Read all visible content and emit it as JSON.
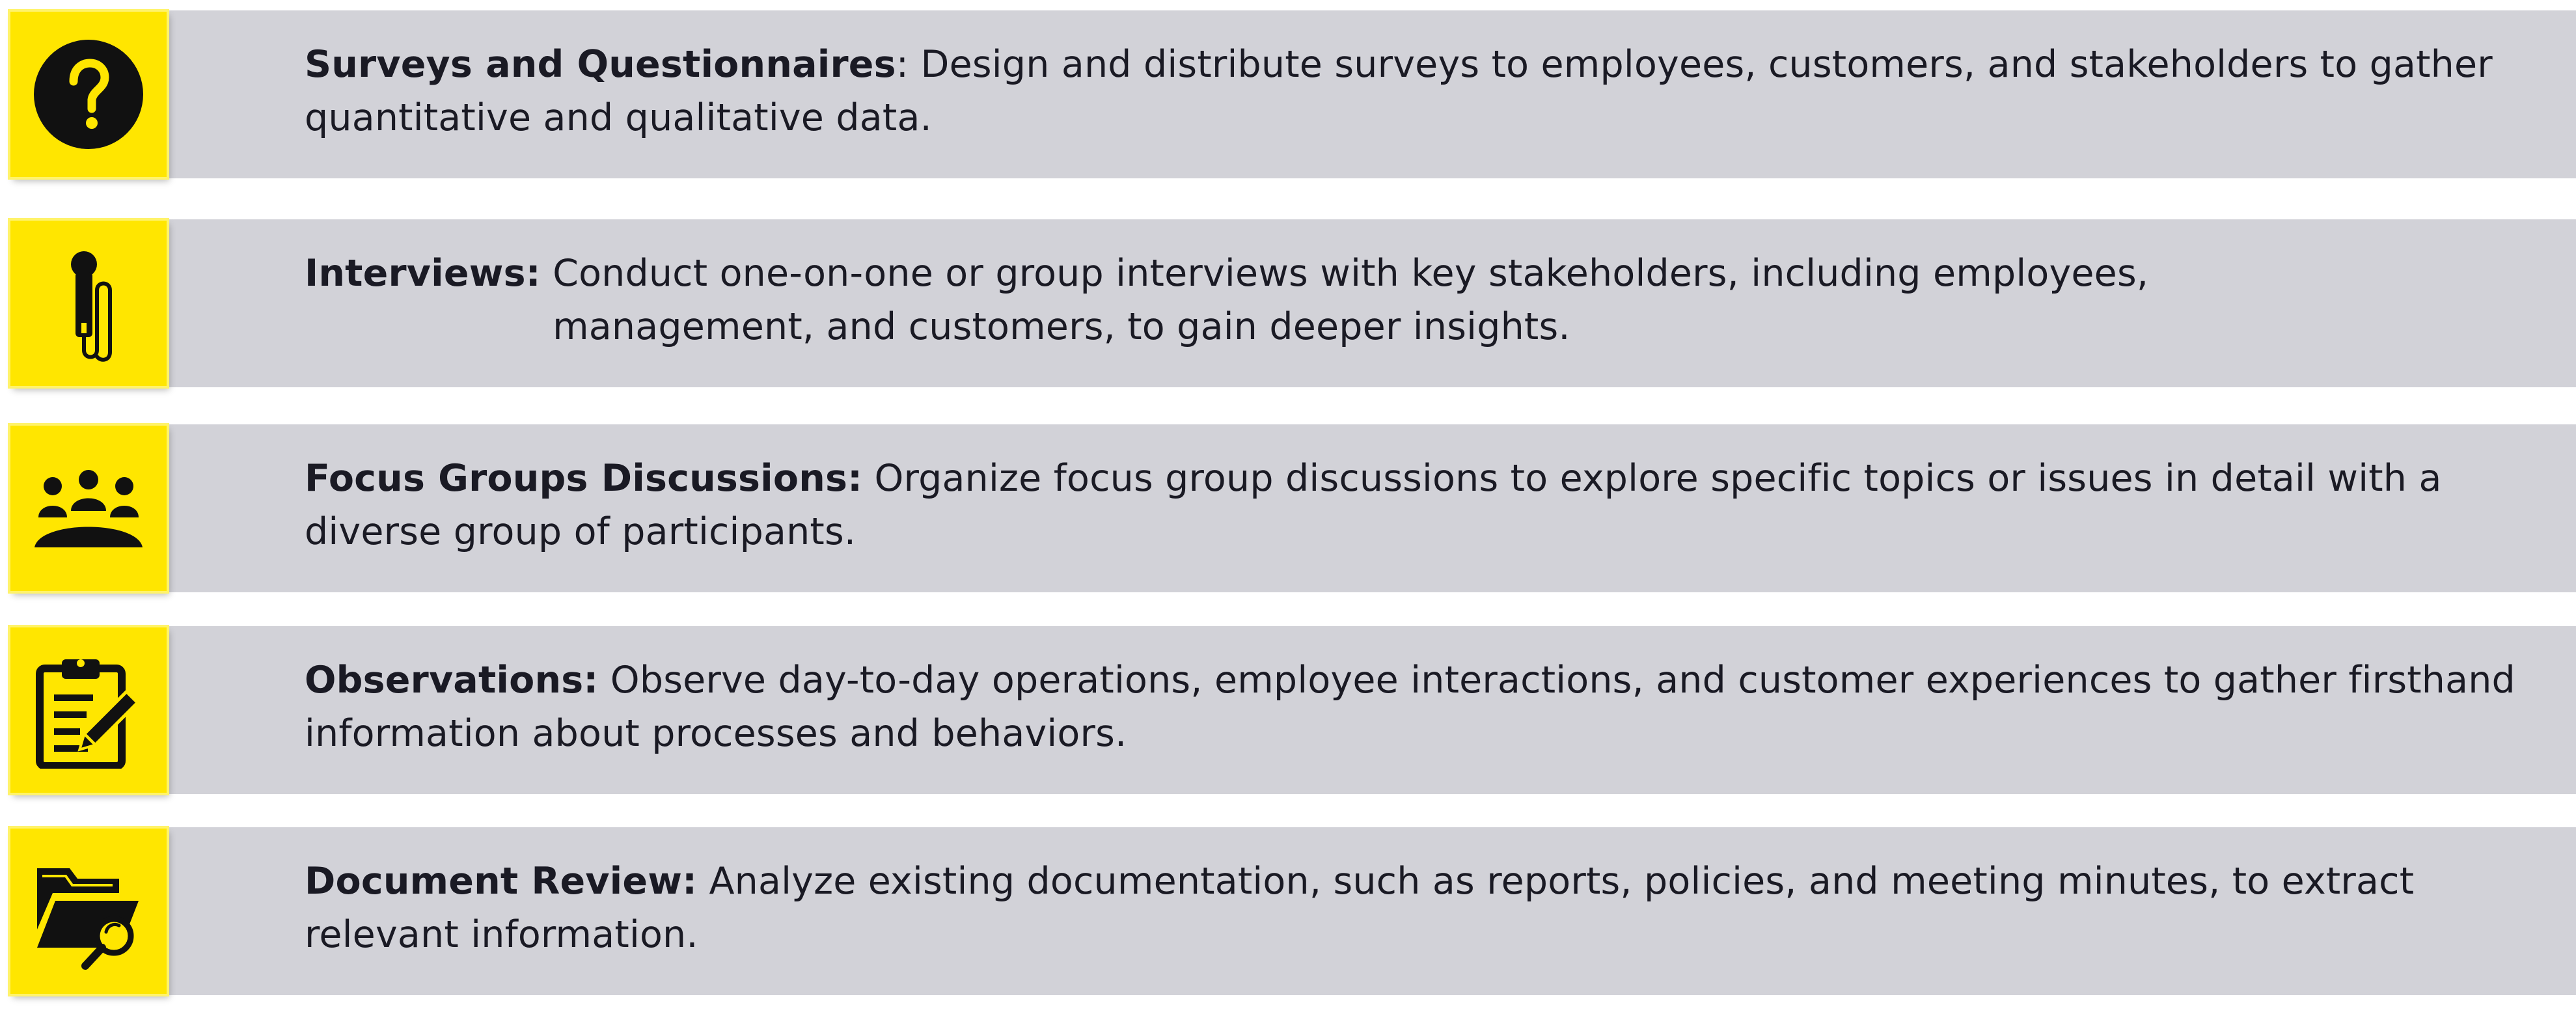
{
  "items": [
    {
      "icon": "question-circle-icon",
      "title": "Surveys and Questionnaires",
      "separator": ": ",
      "description": "Design and distribute surveys to employees, customers, and stakeholders to gather quantitative and qualitative data."
    },
    {
      "icon": "microphone-icon",
      "title": "Interviews:",
      "separator": " ",
      "description": "Conduct one-on-one or group interviews with key stakeholders, including employees, management, and customers, to gain deeper insights."
    },
    {
      "icon": "group-meeting-icon",
      "title": "Focus Groups Discussions:",
      "separator": " ",
      "description": "Organize focus group discussions to explore specific topics or issues in detail with a diverse group of participants."
    },
    {
      "icon": "clipboard-pencil-icon",
      "title": "Observations:",
      "separator": " ",
      "description": "Observe day-to-day operations, employee interactions, and customer experiences to gather firsthand information about processes and behaviors."
    },
    {
      "icon": "folder-search-icon",
      "title": "Document Review:",
      "separator": " ",
      "description": "Analyze existing documentation, such as reports, policies, and meeting minutes, to extract relevant information."
    }
  ],
  "colors": {
    "accent": "#ffe600",
    "band": "#d2d2d8",
    "text": "#1a1a24"
  }
}
